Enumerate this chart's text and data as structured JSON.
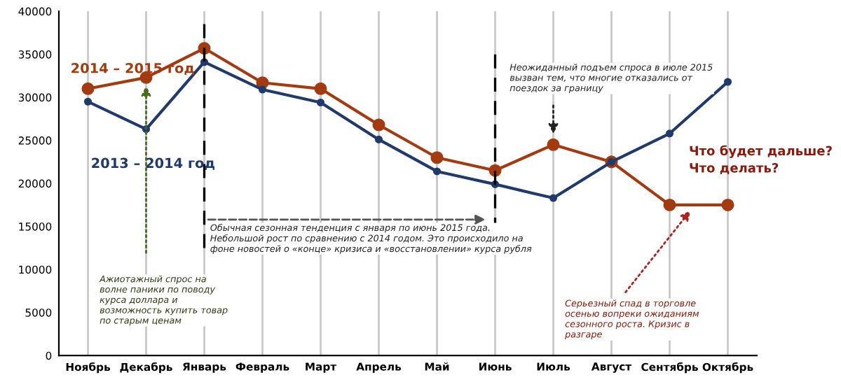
{
  "chart_data": {
    "type": "line",
    "categories": [
      "Ноябрь",
      "Декабрь",
      "Январь",
      "Февраль",
      "Март",
      "Апрель",
      "Май",
      "Июнь",
      "Июль",
      "Август",
      "Сентябрь",
      "Октябрь"
    ],
    "series": [
      {
        "name": "2014 – 2015 год",
        "color": "#a33a10",
        "values": [
          31000,
          32300,
          35700,
          31700,
          31000,
          26800,
          23000,
          21500,
          24500,
          22500,
          17500,
          17500
        ]
      },
      {
        "name": "2013 – 2014 год",
        "color": "#1f3a6b",
        "values": [
          29500,
          26300,
          34100,
          30900,
          29400,
          25100,
          21400,
          19900,
          18300,
          22500,
          25800,
          31800
        ]
      }
    ],
    "ylim": [
      0,
      40000
    ],
    "yticks": [
      0,
      5000,
      10000,
      15000,
      20000,
      25000,
      30000,
      35000,
      40000
    ],
    "grid": "x",
    "marker": "circle",
    "line_style": "solid",
    "legend": false,
    "annotations": [
      "Ажиотажный спрос на волне паники по поводу курса доллара и возможность купить товар по старым ценам",
      "Обычная сезонная тенденция с января по июнь 2015 года. Небольшой рост по сравнению с 2014 годом. Это происходило на фоне новостей о «конце» кризиса и «восстановлении» курса рубля",
      "Неожиданный подъем спроса в июле 2015 вызван тем, что многие отказались от поездок за границу",
      "Серьезный спад в торговле осенью вопреки ожиданиям сезонного роста. Кризис в разгаре",
      "Что будет дальше?\nЧто делать?"
    ]
  }
}
